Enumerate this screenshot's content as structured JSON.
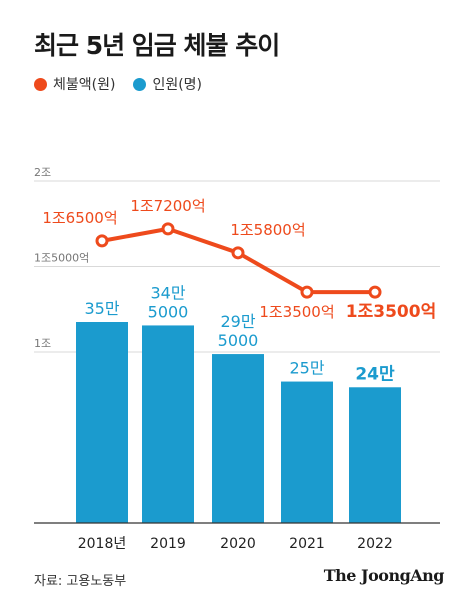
{
  "title": "최근 5년 임금 체불 추이",
  "legend": {
    "amount_label": "체불액(원)",
    "workers_label": "인원(명)"
  },
  "source": "자료: 고용노동부",
  "brand": "The JoongAng",
  "colors": {
    "line": "#ee4a1c",
    "bar": "#1b9bce",
    "axis": "#555555",
    "grid": "#d9d9d9"
  },
  "chart_data": {
    "type": "bar",
    "title": "최근 5년 임금 체불 추이",
    "categories": [
      "2018년",
      "2019",
      "2020",
      "2021",
      "2022"
    ],
    "y_ticks": [
      {
        "value": 1.0,
        "label": "1조"
      },
      {
        "value": 1.5,
        "label": "1조5000억"
      },
      {
        "value": 2.0,
        "label": "2조"
      }
    ],
    "ylim": [
      0,
      2.0
    ],
    "series": [
      {
        "name": "체불액(원)",
        "type": "line",
        "unit": "조",
        "values": [
          1.65,
          1.72,
          1.58,
          1.35,
          1.35
        ],
        "labels": [
          "1조6500억",
          "1조7200억",
          "1조5800억",
          "1조3500억",
          "1조3500억"
        ]
      },
      {
        "name": "인원(명)",
        "type": "bar",
        "unit": "명",
        "values": [
          351000,
          345000,
          295000,
          247000,
          237000
        ],
        "labels": [
          [
            "35만"
          ],
          [
            "34만",
            "5000"
          ],
          [
            "29만",
            "5000"
          ],
          [
            "25만"
          ],
          [
            "24만"
          ]
        ]
      }
    ]
  }
}
